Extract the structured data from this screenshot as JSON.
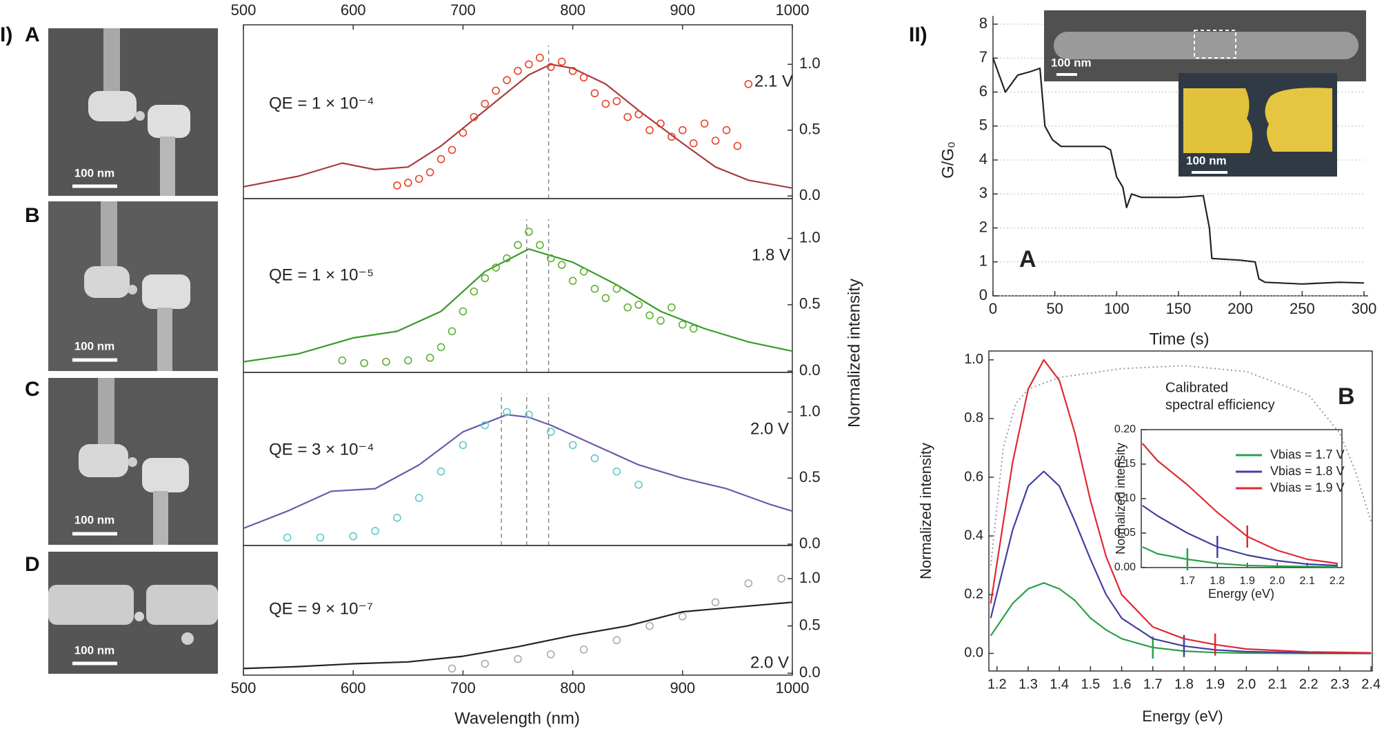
{
  "panel_I": {
    "label": "I)",
    "images": [
      {
        "label": "A",
        "scale_bar": "100 nm"
      },
      {
        "label": "B",
        "scale_bar": "100 nm"
      },
      {
        "label": "C",
        "scale_bar": "100 nm"
      },
      {
        "label": "D",
        "scale_bar": "100 nm"
      }
    ]
  },
  "panel_II": {
    "label": "II)",
    "images": [
      {
        "scale_bar": "100 nm"
      },
      {
        "scale_bar": "100 nm"
      }
    ]
  },
  "chart_data": [
    {
      "type": "line",
      "xlim": [
        500,
        1000
      ],
      "xticks": [
        500,
        600,
        700,
        800,
        900,
        1000
      ],
      "xaxis_side": "top",
      "ylim": [
        -0.02,
        1.3
      ],
      "yticks": [
        {
          "value": 0,
          "label": "0.0"
        },
        0.5,
        {
          "value": 1,
          "label": "1.0"
        }
      ],
      "yaxis_side": "right",
      "vlines": [
        778
      ],
      "series": [
        {
          "style": "line",
          "color": "#a83c3c",
          "x": [
            500,
            550,
            590,
            620,
            650,
            680,
            720,
            760,
            780,
            800,
            830,
            860,
            900,
            930,
            960,
            1000
          ],
          "values": [
            0.07,
            0.15,
            0.25,
            0.2,
            0.22,
            0.38,
            0.65,
            0.92,
            1.0,
            0.97,
            0.85,
            0.65,
            0.4,
            0.22,
            0.12,
            0.06
          ]
        },
        {
          "style": "markers",
          "color": "#e8402a",
          "x": [
            640,
            650,
            660,
            670,
            680,
            690,
            700,
            710,
            720,
            730,
            740,
            750,
            760,
            770,
            780,
            790,
            800,
            810,
            820,
            830,
            840,
            850,
            860,
            870,
            880,
            890,
            900,
            910,
            920,
            930,
            940,
            950,
            960
          ],
          "values": [
            0.08,
            0.1,
            0.13,
            0.18,
            0.28,
            0.35,
            0.48,
            0.6,
            0.7,
            0.8,
            0.88,
            0.95,
            1.0,
            1.05,
            0.98,
            1.02,
            0.95,
            0.9,
            0.78,
            0.7,
            0.72,
            0.6,
            0.62,
            0.5,
            0.55,
            0.45,
            0.5,
            0.4,
            0.55,
            0.42,
            0.5,
            0.38,
            0.85
          ]
        }
      ],
      "annotations": [
        {
          "text": "QE = 1 × 10⁻⁴",
          "color": "#c05a5a"
        },
        {
          "text": "2.1 V",
          "color": "#e8503a"
        }
      ]
    },
    {
      "type": "line",
      "xlim": [
        500,
        1000
      ],
      "ylim": [
        -0.01,
        1.3
      ],
      "yticks": [
        {
          "value": 0,
          "label": "0.0"
        },
        0.5,
        {
          "value": 1,
          "label": "1.0"
        }
      ],
      "yaxis_side": "right",
      "ylabel": "Normalized intensity",
      "vlines": [
        758,
        778
      ],
      "series": [
        {
          "style": "line",
          "color": "#3a9a2a",
          "x": [
            500,
            550,
            600,
            640,
            680,
            720,
            760,
            800,
            840,
            880,
            920,
            960,
            1000
          ],
          "values": [
            0.07,
            0.13,
            0.25,
            0.3,
            0.45,
            0.75,
            0.92,
            0.82,
            0.65,
            0.45,
            0.32,
            0.22,
            0.15
          ]
        },
        {
          "style": "markers",
          "color": "#5cb030",
          "x": [
            590,
            610,
            630,
            650,
            670,
            680,
            690,
            700,
            710,
            720,
            730,
            740,
            750,
            760,
            770,
            780,
            790,
            800,
            810,
            820,
            830,
            840,
            850,
            860,
            870,
            880,
            890,
            900,
            910
          ],
          "values": [
            0.08,
            0.06,
            0.07,
            0.08,
            0.1,
            0.18,
            0.3,
            0.45,
            0.6,
            0.7,
            0.78,
            0.85,
            0.95,
            1.05,
            0.95,
            0.85,
            0.8,
            0.68,
            0.75,
            0.62,
            0.55,
            0.62,
            0.48,
            0.5,
            0.42,
            0.38,
            0.48,
            0.35,
            0.32
          ]
        }
      ],
      "annotations": [
        {
          "text": "QE = 1 × 10⁻⁵",
          "color": "#6ab04c"
        },
        {
          "text": "1.8 V",
          "color": "#7ab84c"
        }
      ]
    },
    {
      "type": "line",
      "xlim": [
        500,
        1000
      ],
      "ylim": [
        -0.01,
        1.3
      ],
      "yticks": [
        {
          "value": 0,
          "label": "0.0"
        },
        0.5,
        {
          "value": 1,
          "label": "1.0"
        }
      ],
      "yaxis_side": "right",
      "vlines": [
        735,
        758,
        778
      ],
      "series": [
        {
          "style": "line",
          "color": "#6a5aa8",
          "x": [
            500,
            540,
            580,
            620,
            660,
            700,
            740,
            760,
            780,
            820,
            860,
            900,
            940,
            980,
            1000
          ],
          "values": [
            0.12,
            0.25,
            0.4,
            0.42,
            0.6,
            0.85,
            0.98,
            0.96,
            0.9,
            0.75,
            0.6,
            0.5,
            0.42,
            0.3,
            0.25
          ]
        },
        {
          "style": "markers",
          "color": "#5ec8c8",
          "x": [
            540,
            570,
            600,
            620,
            640,
            660,
            680,
            700,
            720,
            740,
            760,
            780,
            800,
            820,
            840,
            860
          ],
          "values": [
            0.05,
            0.05,
            0.06,
            0.1,
            0.2,
            0.35,
            0.55,
            0.75,
            0.9,
            1.0,
            0.98,
            0.85,
            0.75,
            0.65,
            0.55,
            0.45
          ]
        }
      ],
      "annotations": [
        {
          "text": "QE = 3 × 10⁻⁴",
          "color": "#6a5aa8"
        },
        {
          "text": "2.0 V",
          "color": "#5ec8c8"
        }
      ]
    },
    {
      "type": "line",
      "xlim": [
        500,
        1000
      ],
      "xticks": [
        500,
        600,
        700,
        800,
        900,
        1000
      ],
      "xaxis_side": "bottom",
      "xlabel": "Wavelength (nm)",
      "ylim": [
        -0.02,
        1.35
      ],
      "yticks": [
        {
          "value": 0,
          "label": "0.0"
        },
        0.5,
        {
          "value": 1,
          "label": "1.0"
        }
      ],
      "yaxis_side": "right",
      "series": [
        {
          "style": "markers",
          "color": "#aaaaaa",
          "x": [
            690,
            720,
            750,
            780,
            810,
            840,
            870,
            900,
            930,
            960,
            990
          ],
          "values": [
            0.05,
            0.1,
            0.15,
            0.2,
            0.25,
            0.35,
            0.5,
            0.6,
            0.75,
            0.95,
            1.0
          ]
        },
        {
          "style": "line",
          "color": "#222222",
          "x": [
            500,
            550,
            600,
            650,
            700,
            750,
            800,
            850,
            900,
            950,
            1000
          ],
          "values": [
            0.05,
            0.07,
            0.1,
            0.12,
            0.18,
            0.28,
            0.4,
            0.5,
            0.65,
            0.7,
            0.75
          ]
        }
      ],
      "annotations": [
        {
          "text": "QE = 9 × 10⁻⁷",
          "color": "#111111"
        },
        {
          "text": "2.0 V",
          "color": "#aaaaaa"
        }
      ]
    },
    {
      "type": "line",
      "xlim": [
        0,
        300
      ],
      "xticks": [
        0,
        50,
        100,
        150,
        200,
        250,
        300
      ],
      "xaxis_side": "bottom",
      "xlabel": "Time (s)",
      "ylim": [
        0,
        8
      ],
      "yticks": [
        0,
        1,
        2,
        3,
        4,
        5,
        6,
        7,
        8
      ],
      "yaxis_side": "left",
      "ylabel": "G/G₀",
      "grid": true,
      "series": [
        {
          "style": "line",
          "color": "#222222",
          "x": [
            0,
            5,
            10,
            20,
            30,
            38,
            42,
            48,
            55,
            70,
            90,
            95,
            100,
            105,
            108,
            112,
            120,
            150,
            170,
            175,
            177,
            200,
            212,
            215,
            220,
            250,
            280,
            300
          ],
          "values": [
            7.0,
            6.5,
            6.0,
            6.5,
            6.6,
            6.7,
            5.0,
            4.6,
            4.4,
            4.4,
            4.4,
            4.3,
            3.5,
            3.2,
            2.6,
            3.0,
            2.9,
            2.9,
            2.95,
            2.0,
            1.1,
            1.05,
            1.0,
            0.5,
            0.4,
            0.35,
            0.4,
            0.38
          ]
        }
      ],
      "annotations": [
        {
          "text": "A",
          "color": "#111111"
        }
      ]
    },
    {
      "type": "line",
      "xlim": [
        1.174,
        2.404
      ],
      "xticks": [
        1.2,
        1.3,
        1.4,
        1.5,
        1.6,
        1.7,
        1.8,
        1.9,
        {
          "value": 2,
          "label": "2.0"
        },
        2.1,
        2.2,
        2.3,
        2.4
      ],
      "xaxis_side": "bottom",
      "xlabel": "Energy (eV)",
      "ylim": [
        -0.06,
        1.03
      ],
      "yticks": [
        {
          "value": 0,
          "label": "0.0"
        },
        0.2,
        0.4,
        0.6,
        0.8,
        {
          "value": 1,
          "label": "1.0"
        }
      ],
      "yaxis_side": "left",
      "ylabel": "Normalized intensity",
      "legend": "right",
      "x": [
        1.18,
        1.25,
        1.3,
        1.35,
        1.4,
        1.45,
        1.5,
        1.55,
        1.6,
        1.7,
        1.8,
        1.9,
        2.0,
        2.2,
        2.4
      ],
      "series": [
        {
          "style": "line",
          "dash": true,
          "color": "#999999",
          "x": [
            1.18,
            1.22,
            1.26,
            1.3,
            1.4,
            1.6,
            1.8,
            2.0,
            2.2,
            2.3,
            2.35,
            2.4
          ],
          "values": [
            0.3,
            0.7,
            0.85,
            0.9,
            0.94,
            0.97,
            0.98,
            0.96,
            0.88,
            0.75,
            0.62,
            0.45
          ]
        },
        {
          "style": "line",
          "name": "Vbias = 1.7 V",
          "color": "#2aa04a",
          "marker_x": 1.7,
          "values": [
            0.06,
            0.17,
            0.22,
            0.24,
            0.22,
            0.18,
            0.12,
            0.08,
            0.05,
            0.02,
            0.008,
            0.003,
            0.001,
            0,
            0
          ]
        },
        {
          "style": "line",
          "name": "Vbias = 1.8 V",
          "color": "#4040a0",
          "marker_x": 1.8,
          "values": [
            0.12,
            0.42,
            0.57,
            0.62,
            0.57,
            0.45,
            0.32,
            0.2,
            0.12,
            0.05,
            0.025,
            0.012,
            0.006,
            0.002,
            0
          ]
        },
        {
          "style": "line",
          "name": "Vbias = 1.9 V",
          "color": "#e02830",
          "marker_x": 1.9,
          "values": [
            0.17,
            0.65,
            0.9,
            1.0,
            0.93,
            0.75,
            0.52,
            0.33,
            0.2,
            0.09,
            0.05,
            0.03,
            0.015,
            0.005,
            0.002
          ]
        }
      ],
      "annotations": [
        {
          "text": "Calibrated",
          "color": "#222222"
        },
        {
          "text": "spectral efficiency",
          "color": "#222222"
        },
        {
          "text": "B",
          "color": "#111111"
        }
      ]
    },
    {
      "type": "line",
      "xlim": [
        1.546,
        2.216
      ],
      "xticks": [
        1.7,
        1.8,
        1.9,
        {
          "value": 2,
          "label": "2.0"
        },
        2.1,
        2.2
      ],
      "xaxis_side": "bottom",
      "xlabel": "Energy (eV)",
      "ylim": [
        0,
        0.2
      ],
      "yticks": [
        {
          "value": 0,
          "label": "0.00"
        },
        0.05,
        {
          "value": 0.1,
          "label": "0.10"
        },
        0.15,
        {
          "value": 0.2,
          "label": "0.20"
        }
      ],
      "yaxis_side": "left",
      "ylabel": "Normalized intensity",
      "x": [
        1.55,
        1.6,
        1.7,
        1.8,
        1.9,
        2.0,
        2.1,
        2.2
      ],
      "series": [
        {
          "style": "line",
          "color": "#2aa04a",
          "marker_x": 1.7,
          "values": [
            0.03,
            0.02,
            0.012,
            0.006,
            0.003,
            0.002,
            0.0015,
            0.001
          ]
        },
        {
          "style": "line",
          "color": "#4040a0",
          "marker_x": 1.8,
          "values": [
            0.09,
            0.075,
            0.05,
            0.03,
            0.018,
            0.01,
            0.005,
            0.003
          ]
        },
        {
          "style": "line",
          "color": "#e02830",
          "marker_x": 1.9,
          "values": [
            0.18,
            0.155,
            0.12,
            0.08,
            0.045,
            0.025,
            0.012,
            0.006
          ]
        }
      ]
    }
  ]
}
